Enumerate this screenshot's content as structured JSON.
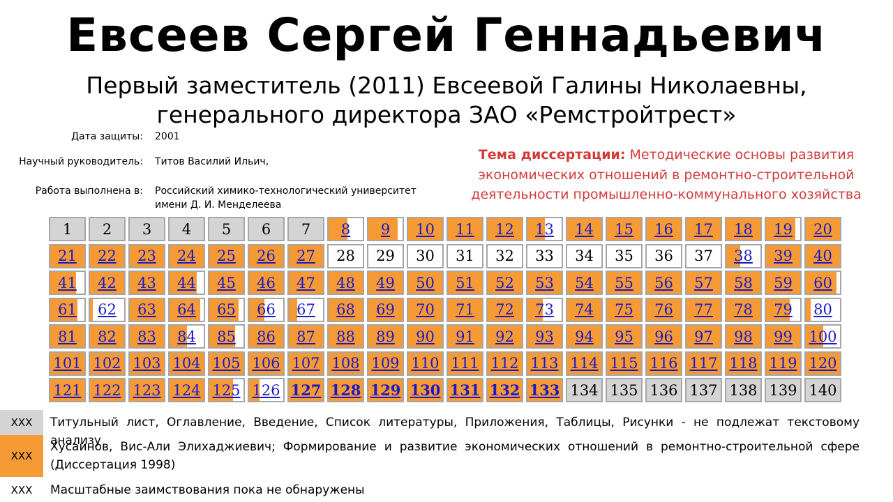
{
  "header": {
    "name": "Евсеев Сергей Геннадьевич",
    "subtitle_line1": "Первый заместитель (2011) Евсеевой Галины Николаевны,",
    "subtitle_line2": "генерального директора ЗАО «Ремстройтрест»"
  },
  "info": [
    {
      "label": "Дата защиты:",
      "value": "2001"
    },
    {
      "label": "Научный руководитель:",
      "value": "Титов Василий Ильич,"
    },
    {
      "label": "Работа выполнена в:",
      "value": "Российский химико-технологический университет имени Д. И. Менделеева"
    }
  ],
  "topic": {
    "label": "Тема диссертации:",
    "text": "Методические основы развития экономических отношений в ремонтно-строительной деятельности промышленно-коммунального хозяйства"
  },
  "colors": {
    "orange": "#f59a35",
    "gray": "#d4d4d4",
    "link": "#1a1ac8",
    "topic": "#d23a3a"
  },
  "pages": [
    {
      "n": "1",
      "status": "gray"
    },
    {
      "n": "2",
      "status": "gray"
    },
    {
      "n": "3",
      "status": "gray"
    },
    {
      "n": "4",
      "status": "gray"
    },
    {
      "n": "5",
      "status": "gray"
    },
    {
      "n": "6",
      "status": "gray"
    },
    {
      "n": "7",
      "status": "gray"
    },
    {
      "n": "8",
      "status": "borrowed",
      "fill": 0.55
    },
    {
      "n": "9",
      "status": "borrowed",
      "fill": 0.85
    },
    {
      "n": "10",
      "status": "borrowed",
      "fill": 1
    },
    {
      "n": "11",
      "status": "borrowed",
      "fill": 1
    },
    {
      "n": "12",
      "status": "borrowed",
      "fill": 1
    },
    {
      "n": "13",
      "status": "borrowed",
      "fill": 0.5
    },
    {
      "n": "14",
      "status": "borrowed",
      "fill": 1
    },
    {
      "n": "15",
      "status": "borrowed",
      "fill": 1
    },
    {
      "n": "16",
      "status": "borrowed",
      "fill": 1
    },
    {
      "n": "17",
      "status": "borrowed",
      "fill": 1
    },
    {
      "n": "18",
      "status": "borrowed",
      "fill": 1
    },
    {
      "n": "19",
      "status": "borrowed",
      "fill": 0.85
    },
    {
      "n": "20",
      "status": "borrowed",
      "fill": 1
    },
    {
      "n": "21",
      "status": "borrowed",
      "fill": 1
    },
    {
      "n": "22",
      "status": "borrowed",
      "fill": 1
    },
    {
      "n": "23",
      "status": "borrowed",
      "fill": 1
    },
    {
      "n": "24",
      "status": "borrowed",
      "fill": 1
    },
    {
      "n": "25",
      "status": "borrowed",
      "fill": 1
    },
    {
      "n": "26",
      "status": "borrowed",
      "fill": 1
    },
    {
      "n": "27",
      "status": "borrowed",
      "fill": 1
    },
    {
      "n": "28",
      "status": "clean"
    },
    {
      "n": "29",
      "status": "clean"
    },
    {
      "n": "30",
      "status": "clean"
    },
    {
      "n": "31",
      "status": "clean"
    },
    {
      "n": "32",
      "status": "clean"
    },
    {
      "n": "33",
      "status": "clean"
    },
    {
      "n": "34",
      "status": "clean"
    },
    {
      "n": "35",
      "status": "clean"
    },
    {
      "n": "36",
      "status": "clean"
    },
    {
      "n": "37",
      "status": "clean"
    },
    {
      "n": "38",
      "status": "borrowed",
      "fill": 0.4
    },
    {
      "n": "39",
      "status": "borrowed",
      "fill": 1
    },
    {
      "n": "40",
      "status": "borrowed",
      "fill": 1
    },
    {
      "n": "41",
      "status": "borrowed",
      "fill": 0.75
    },
    {
      "n": "42",
      "status": "borrowed",
      "fill": 1
    },
    {
      "n": "43",
      "status": "borrowed",
      "fill": 1
    },
    {
      "n": "44",
      "status": "borrowed",
      "fill": 0.8
    },
    {
      "n": "45",
      "status": "borrowed",
      "fill": 1
    },
    {
      "n": "46",
      "status": "borrowed",
      "fill": 1
    },
    {
      "n": "47",
      "status": "borrowed",
      "fill": 1
    },
    {
      "n": "48",
      "status": "borrowed",
      "fill": 1
    },
    {
      "n": "49",
      "status": "borrowed",
      "fill": 1
    },
    {
      "n": "50",
      "status": "borrowed",
      "fill": 1
    },
    {
      "n": "51",
      "status": "borrowed",
      "fill": 1
    },
    {
      "n": "52",
      "status": "borrowed",
      "fill": 1
    },
    {
      "n": "53",
      "status": "borrowed",
      "fill": 1
    },
    {
      "n": "54",
      "status": "borrowed",
      "fill": 1
    },
    {
      "n": "55",
      "status": "borrowed",
      "fill": 1
    },
    {
      "n": "56",
      "status": "borrowed",
      "fill": 1
    },
    {
      "n": "57",
      "status": "borrowed",
      "fill": 1
    },
    {
      "n": "58",
      "status": "borrowed",
      "fill": 1
    },
    {
      "n": "59",
      "status": "borrowed",
      "fill": 1
    },
    {
      "n": "60",
      "status": "borrowed",
      "fill": 0.9
    },
    {
      "n": "61",
      "status": "borrowed",
      "fill": 0.8
    },
    {
      "n": "62",
      "status": "borrowed",
      "fill": 0.08
    },
    {
      "n": "63",
      "status": "borrowed",
      "fill": 1
    },
    {
      "n": "64",
      "status": "borrowed",
      "fill": 0.9
    },
    {
      "n": "65",
      "status": "borrowed",
      "fill": 0.85
    },
    {
      "n": "66",
      "status": "borrowed",
      "fill": 0.45
    },
    {
      "n": "67",
      "status": "borrowed",
      "fill": 0.25
    },
    {
      "n": "68",
      "status": "borrowed",
      "fill": 1
    },
    {
      "n": "69",
      "status": "borrowed",
      "fill": 1
    },
    {
      "n": "70",
      "status": "borrowed",
      "fill": 1
    },
    {
      "n": "71",
      "status": "borrowed",
      "fill": 1
    },
    {
      "n": "72",
      "status": "borrowed",
      "fill": 1
    },
    {
      "n": "73",
      "status": "borrowed",
      "fill": 0.45
    },
    {
      "n": "74",
      "status": "borrowed",
      "fill": 1
    },
    {
      "n": "75",
      "status": "borrowed",
      "fill": 1
    },
    {
      "n": "76",
      "status": "borrowed",
      "fill": 1
    },
    {
      "n": "77",
      "status": "borrowed",
      "fill": 1
    },
    {
      "n": "78",
      "status": "borrowed",
      "fill": 1
    },
    {
      "n": "79",
      "status": "borrowed",
      "fill": 0.7
    },
    {
      "n": "80",
      "status": "borrowed",
      "fill": 0.15
    },
    {
      "n": "81",
      "status": "borrowed",
      "fill": 1
    },
    {
      "n": "82",
      "status": "borrowed",
      "fill": 1
    },
    {
      "n": "83",
      "status": "borrowed",
      "fill": 1
    },
    {
      "n": "84",
      "status": "borrowed",
      "fill": 0.5
    },
    {
      "n": "85",
      "status": "borrowed",
      "fill": 0.75
    },
    {
      "n": "86",
      "status": "borrowed",
      "fill": 1
    },
    {
      "n": "87",
      "status": "borrowed",
      "fill": 1
    },
    {
      "n": "88",
      "status": "borrowed",
      "fill": 1
    },
    {
      "n": "89",
      "status": "borrowed",
      "fill": 1
    },
    {
      "n": "90",
      "status": "borrowed",
      "fill": 1
    },
    {
      "n": "91",
      "status": "borrowed",
      "fill": 1
    },
    {
      "n": "92",
      "status": "borrowed",
      "fill": 1
    },
    {
      "n": "93",
      "status": "borrowed",
      "fill": 1
    },
    {
      "n": "94",
      "status": "borrowed",
      "fill": 1
    },
    {
      "n": "95",
      "status": "borrowed",
      "fill": 1
    },
    {
      "n": "96",
      "status": "borrowed",
      "fill": 1
    },
    {
      "n": "97",
      "status": "borrowed",
      "fill": 1
    },
    {
      "n": "98",
      "status": "borrowed",
      "fill": 1
    },
    {
      "n": "99",
      "status": "borrowed",
      "fill": 1
    },
    {
      "n": "100",
      "status": "borrowed",
      "fill": 0.5
    },
    {
      "n": "101",
      "status": "borrowed",
      "fill": 1
    },
    {
      "n": "102",
      "status": "borrowed",
      "fill": 1
    },
    {
      "n": "103",
      "status": "borrowed",
      "fill": 1
    },
    {
      "n": "104",
      "status": "borrowed",
      "fill": 1
    },
    {
      "n": "105",
      "status": "borrowed",
      "fill": 1
    },
    {
      "n": "106",
      "status": "borrowed",
      "fill": 1
    },
    {
      "n": "107",
      "status": "borrowed",
      "fill": 1
    },
    {
      "n": "108",
      "status": "borrowed",
      "fill": 1
    },
    {
      "n": "109",
      "status": "borrowed",
      "fill": 1
    },
    {
      "n": "110",
      "status": "borrowed",
      "fill": 1
    },
    {
      "n": "111",
      "status": "borrowed",
      "fill": 1
    },
    {
      "n": "112",
      "status": "borrowed",
      "fill": 1
    },
    {
      "n": "113",
      "status": "borrowed",
      "fill": 1
    },
    {
      "n": "114",
      "status": "borrowed",
      "fill": 1
    },
    {
      "n": "115",
      "status": "borrowed",
      "fill": 1
    },
    {
      "n": "116",
      "status": "borrowed",
      "fill": 1
    },
    {
      "n": "117",
      "status": "borrowed",
      "fill": 1
    },
    {
      "n": "118",
      "status": "borrowed",
      "fill": 1
    },
    {
      "n": "119",
      "status": "borrowed",
      "fill": 1
    },
    {
      "n": "120",
      "status": "borrowed",
      "fill": 1
    },
    {
      "n": "121",
      "status": "borrowed",
      "fill": 1
    },
    {
      "n": "122",
      "status": "borrowed",
      "fill": 1
    },
    {
      "n": "123",
      "status": "borrowed",
      "fill": 1
    },
    {
      "n": "124",
      "status": "borrowed",
      "fill": 1
    },
    {
      "n": "125",
      "status": "borrowed",
      "fill": 0.7
    },
    {
      "n": "126",
      "status": "borrowed",
      "fill": 0.3
    },
    {
      "n": "127",
      "status": "borrowed",
      "fill": 1,
      "bold": true
    },
    {
      "n": "128",
      "status": "borrowed",
      "fill": 1,
      "bold": true
    },
    {
      "n": "129",
      "status": "borrowed",
      "fill": 1,
      "bold": true
    },
    {
      "n": "130",
      "status": "borrowed",
      "fill": 1,
      "bold": true
    },
    {
      "n": "131",
      "status": "borrowed",
      "fill": 1,
      "bold": true
    },
    {
      "n": "132",
      "status": "borrowed",
      "fill": 1,
      "bold": true
    },
    {
      "n": "133",
      "status": "borrowed",
      "fill": 1,
      "bold": true
    },
    {
      "n": "134",
      "status": "gray"
    },
    {
      "n": "135",
      "status": "gray"
    },
    {
      "n": "136",
      "status": "gray"
    },
    {
      "n": "137",
      "status": "gray"
    },
    {
      "n": "138",
      "status": "gray"
    },
    {
      "n": "139",
      "status": "gray"
    },
    {
      "n": "140",
      "status": "gray"
    }
  ],
  "legend": [
    {
      "swatch": "XXX",
      "color": "gray",
      "text": "Титульный лист, Оглавление, Введение, Список литературы, Приложения, Таблицы, Рисунки - не подлежат текстовому анализу"
    },
    {
      "swatch": "XXX",
      "color": "orange",
      "text": "Хусаинов, Вис-Али Элихаджиевич; Формирование и развитие экономических отношений в ремонтно-строительной сфере (Диссертация 1998)"
    },
    {
      "swatch": "XXX",
      "color": "white",
      "text": "Масштабные заимствования пока не обнаружены"
    }
  ]
}
